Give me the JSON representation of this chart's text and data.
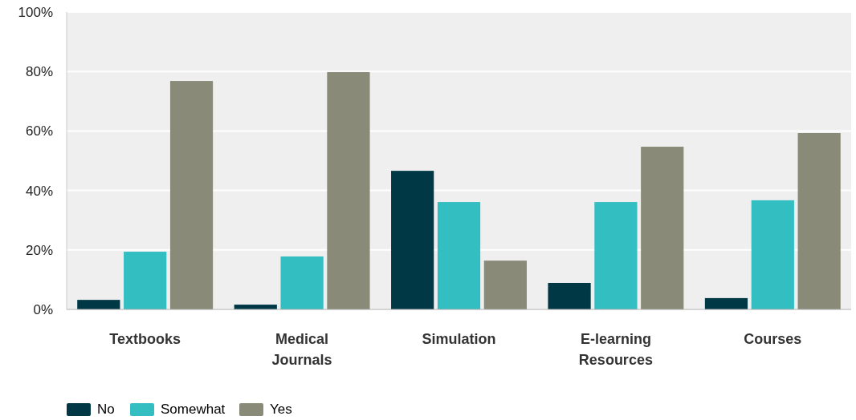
{
  "chart_data": {
    "type": "bar",
    "categories": [
      "Textbooks",
      "Medical Journals",
      "Simulation",
      "E-learning Resources",
      "Courses"
    ],
    "series": [
      {
        "name": "No",
        "color": "#003846",
        "values": [
          3.2,
          1.6,
          46.6,
          8.9,
          3.8
        ]
      },
      {
        "name": "Somewhat",
        "color": "#33bec1",
        "values": [
          19.4,
          17.8,
          36.1,
          36.1,
          36.7
        ]
      },
      {
        "name": "Yes",
        "color": "#8a8a78",
        "values": [
          76.8,
          79.8,
          16.4,
          54.7,
          59.3
        ]
      }
    ],
    "ylim": [
      0,
      100
    ],
    "yticks": [
      {
        "value": 0,
        "label": "0%"
      },
      {
        "value": 20,
        "label": "20%"
      },
      {
        "value": 40,
        "label": "40%"
      },
      {
        "value": 60,
        "label": "60%"
      },
      {
        "value": 80,
        "label": "80%"
      },
      {
        "value": 100,
        "label": "100%"
      }
    ],
    "grid": "y",
    "legend": "bottom left"
  }
}
